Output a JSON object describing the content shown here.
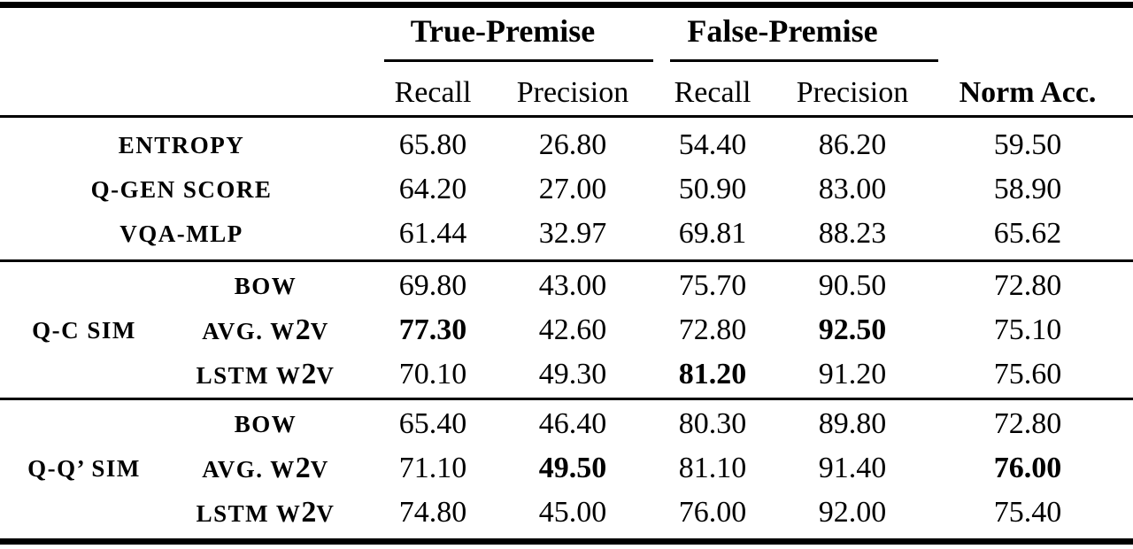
{
  "table": {
    "header": {
      "true_premise": "True-Premise",
      "false_premise": "False-Premise",
      "recall_1": "Recall",
      "precision_1": "Precision",
      "recall_2": "Recall",
      "precision_2": "Precision",
      "norm_acc": "Norm Acc."
    },
    "blocks": [
      {
        "rows": [
          {
            "method": "ENTROPY",
            "values": [
              "65.80",
              "26.80",
              "54.40",
              "86.20",
              "59.50"
            ],
            "bold_cols": []
          },
          {
            "method": "Q-GEN SCORE",
            "values": [
              "64.20",
              "27.00",
              "50.90",
              "83.00",
              "58.90"
            ],
            "bold_cols": []
          },
          {
            "method": "VQA-MLP",
            "values": [
              "61.44",
              "32.97",
              "69.81",
              "88.23",
              "65.62"
            ],
            "bold_cols": []
          }
        ]
      },
      {
        "group_label": "Q-C SIM",
        "rows": [
          {
            "method": "BOW",
            "values": [
              "69.80",
              "43.00",
              "75.70",
              "90.50",
              "72.80"
            ],
            "bold_cols": []
          },
          {
            "method": "AVG. W2V",
            "values": [
              "77.30",
              "42.60",
              "72.80",
              "92.50",
              "75.10"
            ],
            "bold_cols": [
              0,
              3
            ]
          },
          {
            "method": "LSTM W2V",
            "values": [
              "70.10",
              "49.30",
              "81.20",
              "91.20",
              "75.60"
            ],
            "bold_cols": [
              2
            ]
          }
        ]
      },
      {
        "group_label": "Q-Q’ SIM",
        "rows": [
          {
            "method": "BOW",
            "values": [
              "65.40",
              "46.40",
              "80.30",
              "89.80",
              "72.80"
            ],
            "bold_cols": []
          },
          {
            "method": "AVG. W2V",
            "values": [
              "71.10",
              "49.50",
              "81.10",
              "91.40",
              "76.00"
            ],
            "bold_cols": [
              1,
              4
            ]
          },
          {
            "method": "LSTM W2V",
            "values": [
              "74.80",
              "45.00",
              "76.00",
              "92.00",
              "75.40"
            ],
            "bold_cols": []
          }
        ]
      }
    ]
  }
}
